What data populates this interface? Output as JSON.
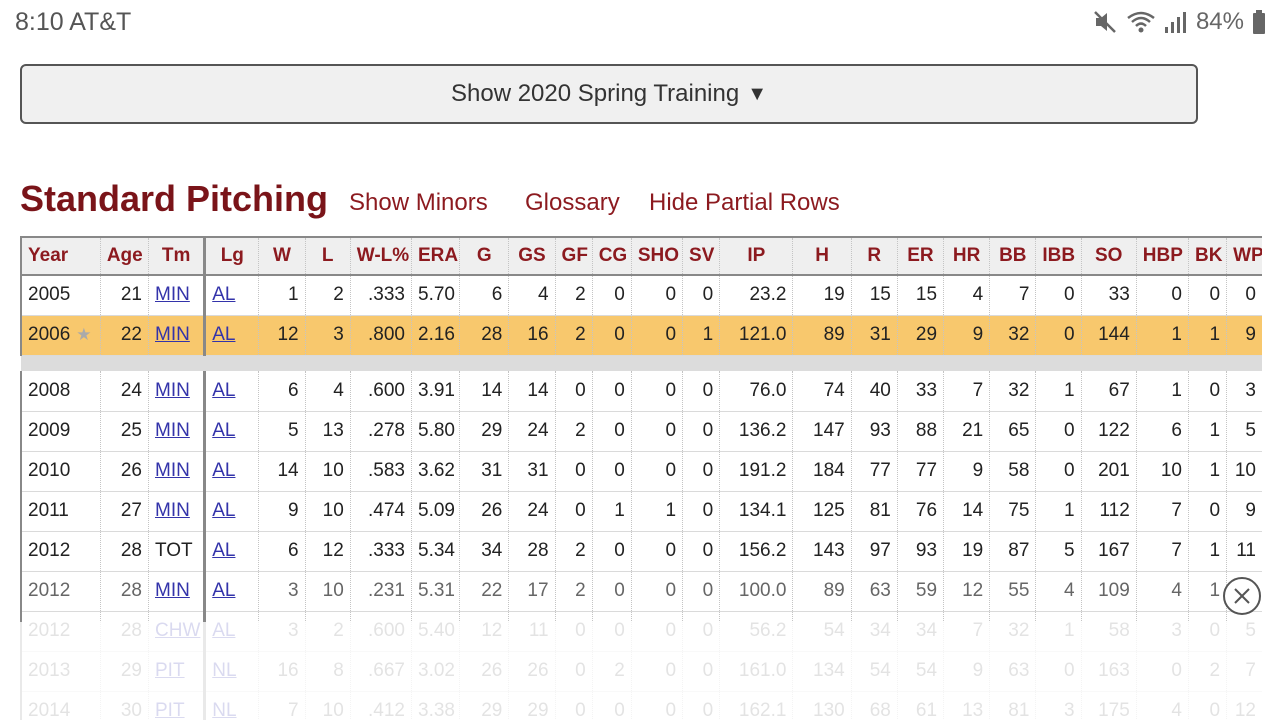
{
  "status": {
    "time_carrier": "8:10 AT&T",
    "battery": "84%"
  },
  "spring_training_button": "Show 2020 Spring Training",
  "section": {
    "title": "Standard Pitching",
    "links": [
      "Show Minors",
      "Glossary",
      "Hide Partial Rows"
    ]
  },
  "table": {
    "headers": [
      "Year",
      "Age",
      "Tm",
      "Lg",
      "W",
      "L",
      "W-L%",
      "ERA",
      "G",
      "GS",
      "GF",
      "CG",
      "SHO",
      "SV",
      "IP",
      "H",
      "R",
      "ER",
      "HR",
      "BB",
      "IBB",
      "SO",
      "HBP",
      "BK",
      "WP"
    ],
    "rows": [
      [
        "2005",
        "21",
        "MIN",
        "AL",
        "1",
        "2",
        ".333",
        "5.70",
        "6",
        "4",
        "2",
        "0",
        "0",
        "0",
        "23.2",
        "19",
        "15",
        "15",
        "4",
        "7",
        "0",
        "33",
        "0",
        "0",
        "0"
      ],
      [
        "2006",
        "22",
        "MIN",
        "AL",
        "12",
        "3",
        ".800",
        "2.16",
        "28",
        "16",
        "2",
        "0",
        "0",
        "1",
        "121.0",
        "89",
        "31",
        "29",
        "9",
        "32",
        "0",
        "144",
        "1",
        "1",
        "9"
      ],
      [
        "2008",
        "24",
        "MIN",
        "AL",
        "6",
        "4",
        ".600",
        "3.91",
        "14",
        "14",
        "0",
        "0",
        "0",
        "0",
        "76.0",
        "74",
        "40",
        "33",
        "7",
        "32",
        "1",
        "67",
        "1",
        "0",
        "3"
      ],
      [
        "2009",
        "25",
        "MIN",
        "AL",
        "5",
        "13",
        ".278",
        "5.80",
        "29",
        "24",
        "2",
        "0",
        "0",
        "0",
        "136.2",
        "147",
        "93",
        "88",
        "21",
        "65",
        "0",
        "122",
        "6",
        "1",
        "5"
      ],
      [
        "2010",
        "26",
        "MIN",
        "AL",
        "14",
        "10",
        ".583",
        "3.62",
        "31",
        "31",
        "0",
        "0",
        "0",
        "0",
        "191.2",
        "184",
        "77",
        "77",
        "9",
        "58",
        "0",
        "201",
        "10",
        "1",
        "10"
      ],
      [
        "2011",
        "27",
        "MIN",
        "AL",
        "9",
        "10",
        ".474",
        "5.09",
        "26",
        "24",
        "0",
        "1",
        "1",
        "0",
        "134.1",
        "125",
        "81",
        "76",
        "14",
        "75",
        "1",
        "112",
        "7",
        "0",
        "9"
      ],
      [
        "2012",
        "28",
        "TOT",
        "AL",
        "6",
        "12",
        ".333",
        "5.34",
        "34",
        "28",
        "2",
        "0",
        "0",
        "0",
        "156.2",
        "143",
        "97",
        "93",
        "19",
        "87",
        "5",
        "167",
        "7",
        "1",
        "11"
      ],
      [
        "2012",
        "28",
        "MIN",
        "AL",
        "3",
        "10",
        ".231",
        "5.31",
        "22",
        "17",
        "2",
        "0",
        "0",
        "0",
        "100.0",
        "89",
        "63",
        "59",
        "12",
        "55",
        "4",
        "109",
        "4",
        "1",
        ""
      ],
      [
        "2012",
        "28",
        "CHW",
        "AL",
        "3",
        "2",
        ".600",
        "5.40",
        "12",
        "11",
        "0",
        "0",
        "0",
        "0",
        "56.2",
        "54",
        "34",
        "34",
        "7",
        "32",
        "1",
        "58",
        "3",
        "0",
        "5"
      ],
      [
        "2013",
        "29",
        "PIT",
        "NL",
        "16",
        "8",
        ".667",
        "3.02",
        "26",
        "26",
        "0",
        "2",
        "0",
        "0",
        "161.0",
        "134",
        "54",
        "54",
        "9",
        "63",
        "0",
        "163",
        "0",
        "2",
        "7"
      ],
      [
        "2014",
        "30",
        "PIT",
        "NL",
        "7",
        "10",
        ".412",
        "3.38",
        "29",
        "29",
        "0",
        "0",
        "0",
        "0",
        "162.1",
        "130",
        "68",
        "61",
        "13",
        "81",
        "3",
        "175",
        "4",
        "0",
        "12"
      ]
    ]
  }
}
